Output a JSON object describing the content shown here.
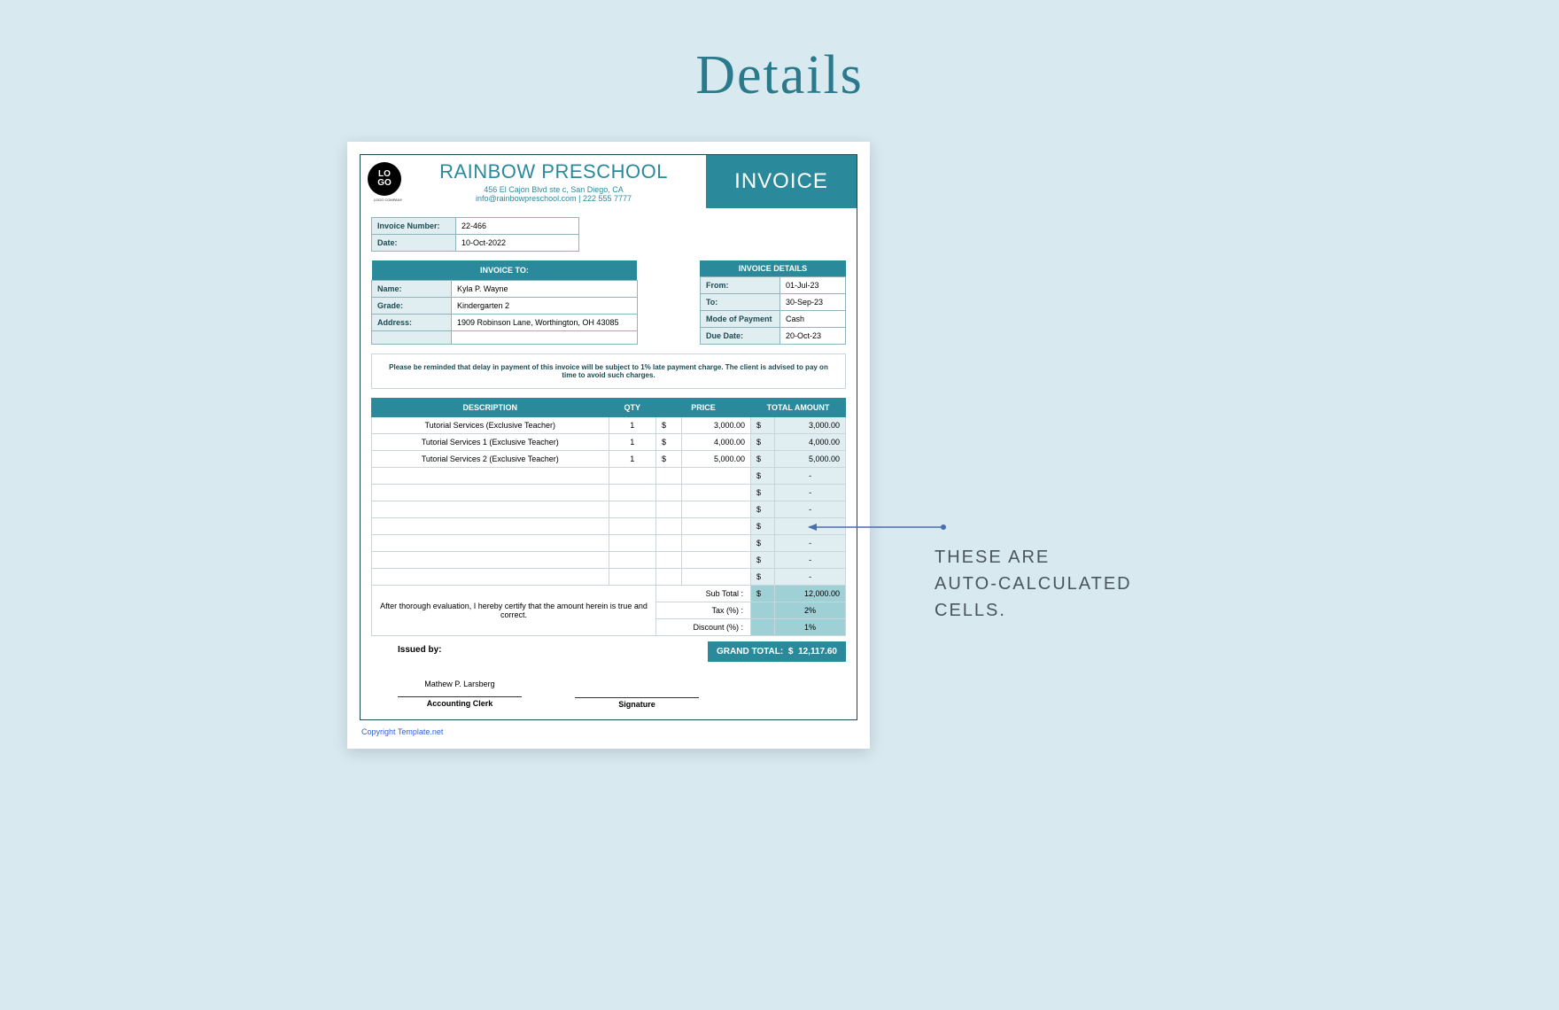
{
  "page": {
    "title": "Details",
    "background_color": "#d8e9f0",
    "title_color": "#2a7a8c",
    "title_fontsize": 62
  },
  "theme": {
    "primary": "#2a8a9c",
    "dark_border": "#1c4a52",
    "light_fill": "#e1eef1",
    "highlight_fill": "#9fd0d6",
    "cell_border": "#c8d6d9"
  },
  "header": {
    "logo_text_top": "LO",
    "logo_text_bottom": "GO",
    "logo_sub": "LOGO COMPANY",
    "school_name": "RAINBOW PRESCHOOL",
    "address": "456 El Cajon Blvd ste c, San Diego, CA",
    "contact": "info@rainbowpreschool.com | 222 555 7777",
    "doc_type": "INVOICE"
  },
  "meta": {
    "invoice_number_label": "Invoice Number:",
    "invoice_number": "22-466",
    "date_label": "Date:",
    "date": "10-Oct-2022"
  },
  "invoice_to": {
    "heading": "INVOICE TO:",
    "name_label": "Name:",
    "name": "Kyla P. Wayne",
    "grade_label": "Grade:",
    "grade": "Kindergarten 2",
    "address_label": "Address:",
    "address": "1909  Robinson Lane, Worthington, OH 43085"
  },
  "invoice_details": {
    "heading": "INVOICE DETAILS",
    "from_label": "From:",
    "from": "01-Jul-23",
    "to_label": "To:",
    "to": "30-Sep-23",
    "mop_label": "Mode of Payment",
    "mop": "Cash",
    "due_label": "Due Date:",
    "due": "20-Oct-23"
  },
  "notice": "Please be reminded that delay in payment of this invoice will be subject to 1% late payment charge. The client is advised to pay on time to avoid such charges.",
  "columns": {
    "desc": "DESCRIPTION",
    "qty": "QTY",
    "price": "PRICE",
    "total": "TOTAL AMOUNT"
  },
  "items": [
    {
      "desc": "Tutorial Services (Exclusive Teacher)",
      "qty": "1",
      "price": "3,000.00",
      "total": "3,000.00"
    },
    {
      "desc": "Tutorial Services 1 (Exclusive Teacher)",
      "qty": "1",
      "price": "4,000.00",
      "total": "4,000.00"
    },
    {
      "desc": "Tutorial Services 2 (Exclusive Teacher)",
      "qty": "1",
      "price": "5,000.00",
      "total": "5,000.00"
    }
  ],
  "empty_rows": 7,
  "currency": "$",
  "dash": "-",
  "summary": {
    "subtotal_label": "Sub Total :",
    "subtotal": "12,000.00",
    "tax_label": "Tax (%) :",
    "tax": "2%",
    "discount_label": "Discount (%) :",
    "discount": "1%"
  },
  "certification": "After thorough evaluation, I hereby certify that the amount herein is true and correct.",
  "grand_total": {
    "label": "GRAND TOTAL:",
    "currency": "$",
    "value": "12,117.60"
  },
  "signatures": {
    "issued_by_label": "Issued by:",
    "issuer_name": "Mathew P. Larsberg",
    "issuer_role": "Accounting Clerk",
    "signature_label": "Signature"
  },
  "copyright": "Copyright Template.net",
  "callout": {
    "line1": "THESE ARE",
    "line2": "AUTO-CALCULATED",
    "line3": "CELLS.",
    "arrow_color": "#4a6fb0"
  }
}
